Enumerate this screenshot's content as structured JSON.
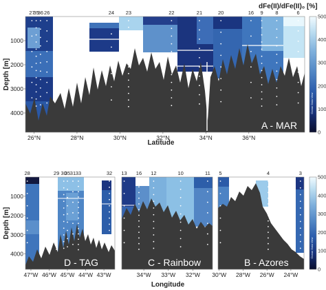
{
  "colorbar": {
    "title": "dFe(II)/dFe(II)₀ [%]",
    "ticks": [
      "0",
      "100",
      "200",
      "300",
      "400",
      "500"
    ],
    "label_text": "Ocean Data View",
    "stops": [
      "#0b0f2e",
      "#17317a",
      "#2c5cab",
      "#5186c4",
      "#7fb0dc",
      "#b9dcf0",
      "#f2fbff"
    ]
  },
  "labels": {
    "depth": "Depth [m]",
    "latitude": "Latitude",
    "longitude": "Longitude"
  },
  "chart_data": [
    {
      "type": "heatmap",
      "panel_label": "A - MAR",
      "xlabel": "Latitude",
      "ylabel": "Depth [m]",
      "xlim_deg_north": [
        25.6,
        38.6
      ],
      "ylim_m": [
        4800,
        0
      ],
      "x_ticks": [
        "26°N",
        "28°N",
        "30°N",
        "32°N",
        "34°N",
        "36°N"
      ],
      "y_ticks": [
        "1000",
        "2000",
        "3000",
        "4000"
      ],
      "stations": [
        "27",
        "35",
        "36",
        "26",
        "24",
        "23",
        "22",
        "21",
        "20",
        "16",
        "9",
        "8",
        "6"
      ],
      "station_lat": [
        25.9,
        26.1,
        26.3,
        26.6,
        29.6,
        30.4,
        32.4,
        33.7,
        34.7,
        36.1,
        36.6,
        37.3,
        38.3
      ]
    },
    {
      "type": "heatmap",
      "panel_label": "D - TAG",
      "xlabel": "",
      "ylabel": "Depth [m]",
      "xlim_deg_west": [
        47.3,
        42.4
      ],
      "ylim_m": [
        4800,
        0
      ],
      "x_ticks": [
        "47°W",
        "46°W",
        "45°W",
        "44°W",
        "43°W"
      ],
      "y_ticks": [
        "1000",
        "2000",
        "3000",
        "4000"
      ],
      "stations": [
        "28",
        "29",
        "30",
        "35",
        "31",
        "33",
        "32"
      ],
      "station_lon_w": [
        47.2,
        45.6,
        45.2,
        45.0,
        44.7,
        44.4,
        42.7
      ]
    },
    {
      "type": "heatmap",
      "panel_label": "C - Rainbow",
      "xlabel": "Longitude",
      "ylabel": "",
      "xlim_deg_west": [
        34.9,
        31.2
      ],
      "ylim_m": [
        4800,
        0
      ],
      "x_ticks": [
        "34°W",
        "33°W",
        "32°W"
      ],
      "y_ticks": [],
      "stations": [
        "13",
        "16",
        "12",
        "10",
        "11"
      ],
      "station_lon_w": [
        34.8,
        34.2,
        33.6,
        32.5,
        31.4
      ]
    },
    {
      "type": "heatmap",
      "panel_label": "B - Azores",
      "xlabel": "",
      "ylabel": "",
      "xlim_deg_west": [
        30.1,
        22.9
      ],
      "ylim_m": [
        4800,
        0
      ],
      "x_ticks": [
        "30°W",
        "28°W",
        "26°W",
        "24°W"
      ],
      "y_ticks": [],
      "stations": [
        "5",
        "4",
        "3"
      ],
      "station_lon_w": [
        29.9,
        25.9,
        23.2
      ]
    }
  ]
}
